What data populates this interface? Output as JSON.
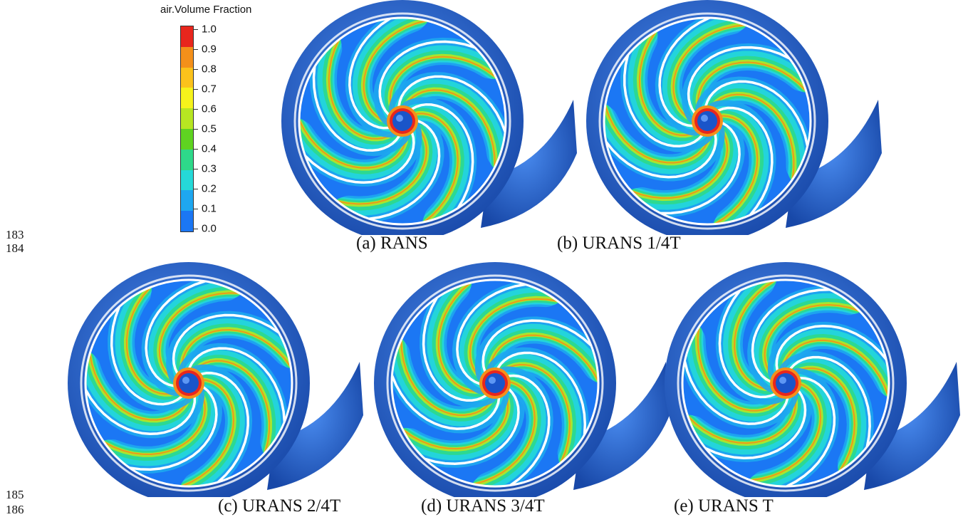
{
  "legend": {
    "title": "air.Volume Fraction",
    "ticks": [
      "1.0",
      "0.9",
      "0.8",
      "0.7",
      "0.6",
      "0.5",
      "0.4",
      "0.3",
      "0.2",
      "0.1",
      "0.0"
    ],
    "colors": [
      "#e8261d",
      "#f4901a",
      "#fbc21b",
      "#f6f31b",
      "#b7e622",
      "#5fd321",
      "#2ed98a",
      "#25d9d8",
      "#1ea7f0",
      "#1b77f4",
      "#1040e8"
    ]
  },
  "line_numbers": [
    "183",
    "184",
    "185",
    "186"
  ],
  "panels": [
    {
      "caption": "(a) RANS"
    },
    {
      "caption": "(b) URANS 1/4T"
    },
    {
      "caption": "(c) URANS 2/4T"
    },
    {
      "caption": "(d) URANS 3/4T"
    },
    {
      "caption": "(e) URANS T"
    }
  ],
  "colors": {
    "casing": "#2f6fd6",
    "casing_dark": "#1a4fb0",
    "blade": "#ffffff",
    "text": "#111111"
  }
}
